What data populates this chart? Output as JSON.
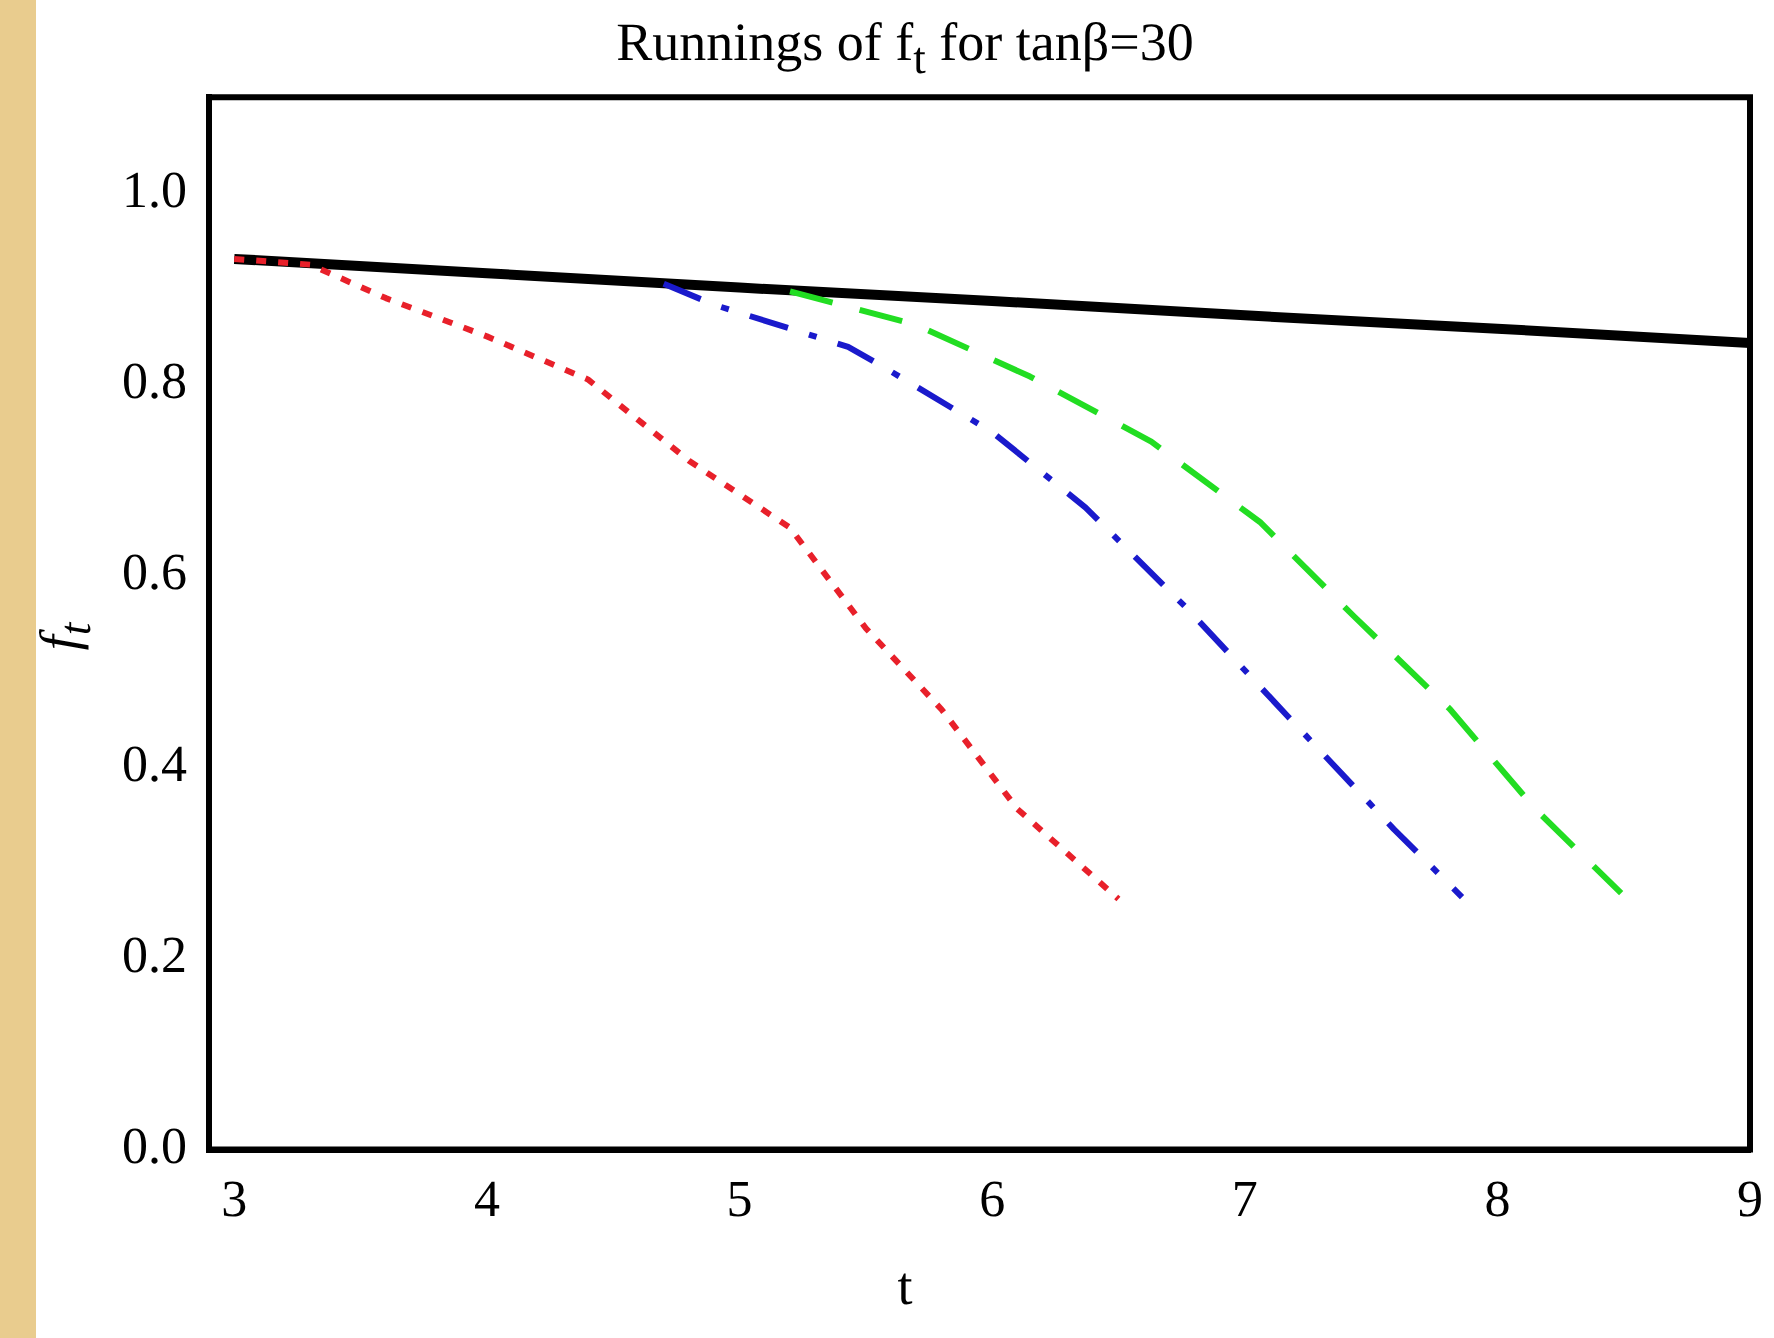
{
  "chart_data": {
    "type": "line",
    "title": "Runnings of f$_{t}$ for tanβ=30",
    "xlabel": "t",
    "ylabel": "f$_{t}$",
    "xlim": [
      2.9,
      9
    ],
    "xticks": [
      3,
      4,
      5,
      6,
      7,
      8,
      9
    ],
    "ylim": [
      0,
      1.1
    ],
    "yticks": [
      {
        "value": 0,
        "label": "0.0"
      },
      0.2,
      0.4,
      0.6,
      0.8,
      {
        "value": 1,
        "label": "1.0"
      }
    ],
    "grid": false,
    "legend": false,
    "marker": "none",
    "series": [
      {
        "color": "#000000",
        "line_style": "solid",
        "x": [
          3,
          4,
          5,
          6,
          7,
          8,
          9
        ],
        "values": [
          0.931,
          0.916,
          0.901,
          0.887,
          0.872,
          0.858,
          0.843
        ]
      },
      {
        "color": "#e8202a",
        "line_style": "dotted",
        "x": [
          3,
          3.3,
          3.6,
          4.0,
          4.4,
          4.8,
          5.2,
          5.5,
          5.8,
          6.1,
          6.5
        ],
        "values": [
          0.931,
          0.925,
          0.89,
          0.85,
          0.805,
          0.72,
          0.65,
          0.545,
          0.46,
          0.356,
          0.262
        ]
      },
      {
        "color": "#1a1acc",
        "line_style": "dashdot",
        "x": [
          4.7,
          4.9,
          5.43,
          5.57,
          6.0,
          6.37,
          6.77,
          7.17,
          7.59,
          7.86
        ],
        "values": [
          0.905,
          0.883,
          0.839,
          0.818,
          0.75,
          0.671,
          0.566,
          0.453,
          0.335,
          0.264
        ]
      },
      {
        "color": "#22dd22",
        "line_style": "dashed",
        "x": [
          5.2,
          5.7,
          6.15,
          6.63,
          7.06,
          7.43,
          7.81,
          8.15,
          8.49
        ],
        "values": [
          0.897,
          0.862,
          0.808,
          0.74,
          0.656,
          0.558,
          0.461,
          0.356,
          0.268
        ]
      }
    ]
  }
}
